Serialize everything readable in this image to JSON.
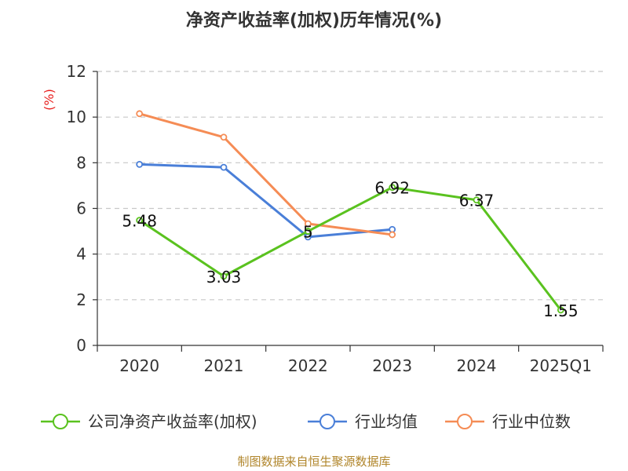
{
  "chart_data": {
    "type": "line",
    "title": "净资产收益率(加权)历年情况(%)",
    "ylabel": "(%)",
    "xlabel": "",
    "categories": [
      "2020",
      "2021",
      "2022",
      "2023",
      "2024",
      "2025Q1"
    ],
    "ylim": [
      0,
      12
    ],
    "yticks": [
      0,
      2,
      4,
      6,
      8,
      10,
      12
    ],
    "grid": true,
    "legend_position": "bottom",
    "series": [
      {
        "name": "公司净资产收益率(加权)",
        "color": "#5ac21f",
        "values": [
          5.48,
          3.03,
          5,
          6.92,
          6.37,
          1.55
        ],
        "labels": [
          "5.48",
          "3.03",
          "5",
          "6.92",
          "6.37",
          "1.55"
        ]
      },
      {
        "name": "行业均值",
        "color": "#4a7fd8",
        "values": [
          7.93,
          7.8,
          4.75,
          5.08,
          null,
          null
        ]
      },
      {
        "name": "行业中位数",
        "color": "#f58c55",
        "values": [
          10.15,
          9.12,
          5.33,
          4.85,
          null,
          null
        ]
      }
    ]
  },
  "footer": "制图数据来自恒生聚源数据库"
}
